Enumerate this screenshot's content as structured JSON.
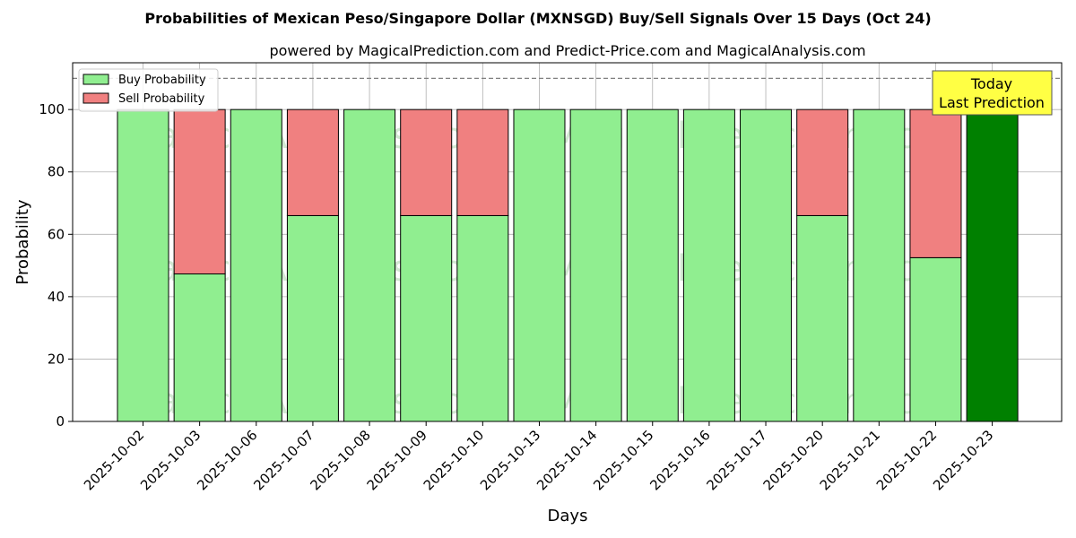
{
  "chart_data": {
    "type": "bar",
    "stacked": true,
    "title": "Probabilities of Mexican Peso/Singapore Dollar (MXNSGD) Buy/Sell Signals Over 15 Days (Oct 24)",
    "subtitle": "powered by MagicalPrediction.com and Predict-Price.com and MagicalAnalysis.com",
    "xlabel": "Days",
    "ylabel": "Probability",
    "ylim": [
      0,
      115
    ],
    "yticks": [
      "0",
      "20",
      "40",
      "60",
      "80",
      "100"
    ],
    "grid": true,
    "legend_position": "top-left",
    "reference_line": 110,
    "categories": [
      "2025-10-02",
      "2025-10-03",
      "2025-10-06",
      "2025-10-07",
      "2025-10-08",
      "2025-10-09",
      "2025-10-10",
      "2025-10-13",
      "2025-10-14",
      "2025-10-15",
      "2025-10-16",
      "2025-10-17",
      "2025-10-20",
      "2025-10-21",
      "2025-10-22",
      "2025-10-23"
    ],
    "series": [
      {
        "name": "Buy Probability",
        "color": "#90ee90",
        "values": [
          100,
          47.3,
          100,
          66,
          100,
          66,
          66,
          100,
          100,
          100,
          100,
          100,
          66,
          100,
          52.5,
          100
        ]
      },
      {
        "name": "Sell Probability",
        "color": "#f08080",
        "values": [
          0,
          52.7,
          0,
          34,
          0,
          34,
          34,
          0,
          0,
          0,
          0,
          0,
          34,
          0,
          47.5,
          0
        ]
      }
    ],
    "highlight": {
      "index": 15,
      "color": "#008000"
    },
    "annotation": {
      "lines": [
        "Today",
        "Last Prediction"
      ],
      "bg": "#ffff44"
    },
    "watermarks": [
      "MagicalAnalysis.com",
      "MagicalPrediction.com"
    ]
  }
}
